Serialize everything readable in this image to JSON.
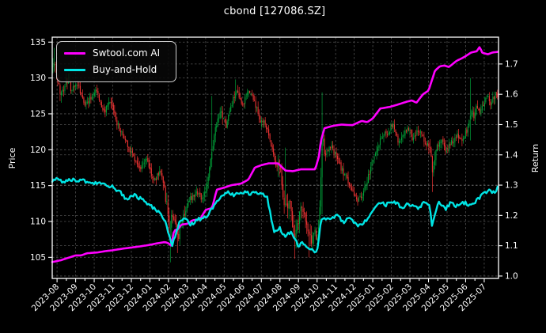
{
  "title": "cbond [127086.SZ]",
  "chart_data": {
    "type": "candlestick+line",
    "title": "cbond [127086.SZ]",
    "ylabel_left": "Price",
    "ylabel_right": "Return",
    "x_unit": "months since 2023-08",
    "x_tick_labels": [
      "2023-08",
      "2023-09",
      "2023-10",
      "2023-11",
      "2023-12",
      "2024-01",
      "2024-02",
      "2024-03",
      "2024-04",
      "2024-05",
      "2024-06",
      "2024-07",
      "2024-08",
      "2024-09",
      "2024-10",
      "2024-11",
      "2024-12",
      "2025-01",
      "2025-02",
      "2025-03",
      "2025-04",
      "2025-05",
      "2025-06",
      "2025-07"
    ],
    "xlim": [
      -0.26,
      23.77
    ],
    "y_left": {
      "ticks": [
        105,
        110,
        115,
        120,
        125,
        130,
        135
      ],
      "lim": [
        102.06,
        135.69
      ]
    },
    "y_right": {
      "tick_labels": [
        "1.0",
        "1.1",
        "1.2",
        "1.3",
        "1.4",
        "1.5",
        "1.6",
        "1.7"
      ],
      "lim": [
        0.992,
        1.7885
      ]
    },
    "grid": {
      "color": "#5f5f5f",
      "dash": "2.5 2.5"
    },
    "background": "#000000",
    "spine_color": "#ffffff",
    "candles": {
      "color_up": "#00a038",
      "color_down": "#ee3333",
      "price_path": [
        [
          -0.26,
          131.0
        ],
        [
          -0.15,
          132.5
        ],
        [
          0.0,
          129.5
        ],
        [
          0.2,
          127.8
        ],
        [
          0.5,
          129.8
        ],
        [
          0.8,
          128.2
        ],
        [
          1.1,
          129.3
        ],
        [
          1.45,
          126.3
        ],
        [
          1.8,
          127.2
        ],
        [
          2.1,
          128.6
        ],
        [
          2.5,
          125.2
        ],
        [
          2.9,
          126.6
        ],
        [
          3.3,
          123.2
        ],
        [
          3.7,
          121.2
        ],
        [
          4.1,
          119.2
        ],
        [
          4.5,
          117.2
        ],
        [
          4.8,
          119.0
        ],
        [
          5.2,
          115.6
        ],
        [
          5.6,
          117.2
        ],
        [
          5.85,
          113.4
        ],
        [
          6.05,
          109.0
        ],
        [
          6.25,
          111.4
        ],
        [
          6.5,
          107.2
        ],
        [
          6.75,
          110.6
        ],
        [
          7.1,
          112.8
        ],
        [
          7.5,
          114.4
        ],
        [
          7.9,
          113.0
        ],
        [
          8.2,
          117.2
        ],
        [
          8.5,
          122.4
        ],
        [
          8.8,
          125.0
        ],
        [
          9.1,
          123.4
        ],
        [
          9.4,
          126.4
        ],
        [
          9.65,
          128.0
        ],
        [
          10.0,
          126.0
        ],
        [
          10.3,
          128.4
        ],
        [
          10.6,
          127.0
        ],
        [
          10.9,
          124.2
        ],
        [
          11.2,
          123.6
        ],
        [
          11.5,
          121.2
        ],
        [
          11.8,
          117.8
        ],
        [
          12.0,
          118.5
        ],
        [
          12.15,
          114.5
        ],
        [
          12.3,
          111.5
        ],
        [
          12.5,
          113.5
        ],
        [
          12.7,
          109.2
        ],
        [
          12.85,
          107.8
        ],
        [
          13.0,
          110.5
        ],
        [
          13.2,
          112.5
        ],
        [
          13.45,
          109.2
        ],
        [
          13.65,
          107.2
        ],
        [
          13.85,
          108.8
        ],
        [
          14.0,
          107.2
        ],
        [
          14.1,
          109.0
        ],
        [
          14.28,
          121.5
        ],
        [
          14.45,
          119.0
        ],
        [
          14.7,
          120.6
        ],
        [
          15.0,
          119.2
        ],
        [
          15.3,
          117.4
        ],
        [
          15.6,
          116.0
        ],
        [
          15.9,
          114.2
        ],
        [
          16.2,
          112.8
        ],
        [
          16.5,
          114.0
        ],
        [
          16.8,
          116.5
        ],
        [
          17.1,
          119.5
        ],
        [
          17.45,
          121.5
        ],
        [
          17.8,
          122.5
        ],
        [
          18.1,
          123.5
        ],
        [
          18.35,
          121.0
        ],
        [
          18.6,
          122.0
        ],
        [
          18.9,
          123.2
        ],
        [
          19.15,
          121.5
        ],
        [
          19.45,
          122.8
        ],
        [
          19.7,
          121.5
        ],
        [
          19.9,
          120.4
        ],
        [
          20.05,
          121.0
        ],
        [
          20.2,
          117.4
        ],
        [
          20.45,
          120.6
        ],
        [
          20.7,
          121.6
        ],
        [
          20.95,
          119.8
        ],
        [
          21.2,
          120.8
        ],
        [
          21.5,
          122.0
        ],
        [
          21.8,
          121.2
        ],
        [
          22.1,
          122.8
        ],
        [
          22.28,
          125.5
        ],
        [
          22.45,
          124.8
        ],
        [
          22.6,
          126.2
        ],
        [
          22.8,
          125.2
        ],
        [
          23.0,
          126.8
        ],
        [
          23.15,
          127.8
        ],
        [
          23.3,
          126.4
        ],
        [
          23.45,
          127.2
        ],
        [
          23.6,
          127.8
        ],
        [
          23.72,
          127.4
        ]
      ],
      "wick_events": [
        [
          -0.15,
          "high",
          134.2
        ],
        [
          6.1,
          "low",
          104.3
        ],
        [
          6.5,
          "low",
          105.6
        ],
        [
          8.35,
          "high",
          127.5
        ],
        [
          9.6,
          "high",
          129.8
        ],
        [
          12.3,
          "high",
          120.3
        ],
        [
          12.8,
          "low",
          104.8
        ],
        [
          13.6,
          "low",
          105.0
        ],
        [
          14.28,
          "high",
          128.0
        ],
        [
          14.28,
          "low",
          111.0
        ],
        [
          20.2,
          "low",
          114.1
        ],
        [
          22.28,
          "high",
          130.0
        ],
        [
          22.28,
          "low",
          121.3
        ]
      ],
      "vol_zones": [
        [
          -0.3,
          0.7,
          1.6
        ],
        [
          5.7,
          6.9,
          1.7
        ],
        [
          8.0,
          9.0,
          1.4
        ],
        [
          11.9,
          14.4,
          1.9
        ],
        [
          19.9,
          20.4,
          1.5
        ]
      ]
    },
    "series": [
      {
        "name": "Swtool.com AI",
        "color": "#ff00ff",
        "axis": "right",
        "width": 2.6,
        "jitter": 0,
        "points": [
          [
            -0.26,
            1.046
          ],
          [
            0.2,
            1.052
          ],
          [
            0.6,
            1.06
          ],
          [
            1.0,
            1.068
          ],
          [
            1.3,
            1.068
          ],
          [
            1.6,
            1.075
          ],
          [
            2.2,
            1.078
          ],
          [
            2.6,
            1.082
          ],
          [
            3.0,
            1.085
          ],
          [
            3.5,
            1.09
          ],
          [
            4.0,
            1.094
          ],
          [
            4.5,
            1.098
          ],
          [
            5.0,
            1.103
          ],
          [
            5.4,
            1.108
          ],
          [
            5.8,
            1.112
          ],
          [
            6.0,
            1.108
          ],
          [
            6.15,
            1.1
          ],
          [
            6.3,
            1.15
          ],
          [
            6.5,
            1.155
          ],
          [
            6.7,
            1.17
          ],
          [
            7.0,
            1.172
          ],
          [
            7.3,
            1.184
          ],
          [
            7.7,
            1.188
          ],
          [
            8.0,
            1.218
          ],
          [
            8.35,
            1.225
          ],
          [
            8.6,
            1.285
          ],
          [
            9.0,
            1.292
          ],
          [
            9.4,
            1.3
          ],
          [
            9.9,
            1.305
          ],
          [
            10.3,
            1.318
          ],
          [
            10.65,
            1.358
          ],
          [
            11.0,
            1.366
          ],
          [
            11.4,
            1.372
          ],
          [
            11.9,
            1.372
          ],
          [
            12.3,
            1.348
          ],
          [
            12.7,
            1.346
          ],
          [
            13.1,
            1.352
          ],
          [
            13.9,
            1.352
          ],
          [
            14.1,
            1.395
          ],
          [
            14.2,
            1.445
          ],
          [
            14.4,
            1.488
          ],
          [
            14.8,
            1.495
          ],
          [
            15.3,
            1.5
          ],
          [
            15.9,
            1.498
          ],
          [
            16.4,
            1.512
          ],
          [
            16.7,
            1.508
          ],
          [
            17.0,
            1.52
          ],
          [
            17.4,
            1.553
          ],
          [
            17.9,
            1.558
          ],
          [
            18.3,
            1.565
          ],
          [
            18.8,
            1.575
          ],
          [
            19.1,
            1.58
          ],
          [
            19.35,
            1.572
          ],
          [
            19.7,
            1.6
          ],
          [
            20.0,
            1.612
          ],
          [
            20.15,
            1.64
          ],
          [
            20.35,
            1.678
          ],
          [
            20.6,
            1.692
          ],
          [
            20.85,
            1.695
          ],
          [
            21.1,
            1.69
          ],
          [
            21.5,
            1.71
          ],
          [
            21.9,
            1.722
          ],
          [
            22.3,
            1.738
          ],
          [
            22.6,
            1.742
          ],
          [
            22.75,
            1.756
          ],
          [
            22.9,
            1.737
          ],
          [
            23.2,
            1.732
          ],
          [
            23.45,
            1.738
          ],
          [
            23.72,
            1.74
          ]
        ]
      },
      {
        "name": "Buy-and-Hold",
        "color": "#00e5e5",
        "axis": "right",
        "width": 2.4,
        "jitter": 0.006,
        "points": [
          [
            -0.26,
            1.315
          ],
          [
            0.0,
            1.322
          ],
          [
            0.3,
            1.31
          ],
          [
            0.6,
            1.32
          ],
          [
            0.9,
            1.316
          ],
          [
            1.3,
            1.318
          ],
          [
            1.7,
            1.31
          ],
          [
            2.1,
            1.306
          ],
          [
            2.5,
            1.303
          ],
          [
            2.9,
            1.296
          ],
          [
            3.3,
            1.282
          ],
          [
            3.6,
            1.262
          ],
          [
            3.8,
            1.252
          ],
          [
            4.0,
            1.27
          ],
          [
            4.3,
            1.262
          ],
          [
            4.7,
            1.248
          ],
          [
            5.0,
            1.236
          ],
          [
            5.3,
            1.22
          ],
          [
            5.6,
            1.2
          ],
          [
            5.9,
            1.168
          ],
          [
            6.1,
            1.12
          ],
          [
            6.2,
            1.1
          ],
          [
            6.35,
            1.13
          ],
          [
            6.6,
            1.18
          ],
          [
            6.9,
            1.19
          ],
          [
            7.2,
            1.168
          ],
          [
            7.5,
            1.185
          ],
          [
            7.8,
            1.19
          ],
          [
            8.1,
            1.2
          ],
          [
            8.5,
            1.238
          ],
          [
            8.9,
            1.268
          ],
          [
            9.2,
            1.28
          ],
          [
            9.5,
            1.268
          ],
          [
            9.8,
            1.272
          ],
          [
            10.1,
            1.278
          ],
          [
            10.4,
            1.27
          ],
          [
            10.7,
            1.276
          ],
          [
            11.0,
            1.272
          ],
          [
            11.3,
            1.262
          ],
          [
            11.5,
            1.2
          ],
          [
            11.7,
            1.148
          ],
          [
            12.0,
            1.158
          ],
          [
            12.3,
            1.128
          ],
          [
            12.6,
            1.15
          ],
          [
            12.8,
            1.122
          ],
          [
            13.0,
            1.097
          ],
          [
            13.25,
            1.112
          ],
          [
            13.55,
            1.088
          ],
          [
            13.85,
            1.082
          ],
          [
            14.05,
            1.086
          ],
          [
            14.2,
            1.19
          ],
          [
            14.5,
            1.185
          ],
          [
            14.8,
            1.192
          ],
          [
            15.1,
            1.2
          ],
          [
            15.4,
            1.176
          ],
          [
            15.7,
            1.19
          ],
          [
            16.0,
            1.18
          ],
          [
            16.2,
            1.165
          ],
          [
            16.5,
            1.172
          ],
          [
            16.8,
            1.2
          ],
          [
            17.1,
            1.228
          ],
          [
            17.4,
            1.24
          ],
          [
            17.7,
            1.235
          ],
          [
            18.0,
            1.248
          ],
          [
            18.3,
            1.242
          ],
          [
            18.6,
            1.22
          ],
          [
            18.9,
            1.238
          ],
          [
            19.2,
            1.228
          ],
          [
            19.5,
            1.225
          ],
          [
            19.8,
            1.248
          ],
          [
            20.05,
            1.235
          ],
          [
            20.2,
            1.16
          ],
          [
            20.35,
            1.205
          ],
          [
            20.55,
            1.245
          ],
          [
            20.75,
            1.235
          ],
          [
            20.95,
            1.222
          ],
          [
            21.2,
            1.245
          ],
          [
            21.45,
            1.23
          ],
          [
            21.7,
            1.24
          ],
          [
            21.95,
            1.242
          ],
          [
            22.2,
            1.235
          ],
          [
            22.45,
            1.242
          ],
          [
            22.7,
            1.258
          ],
          [
            22.95,
            1.27
          ],
          [
            23.2,
            1.282
          ],
          [
            23.4,
            1.278
          ],
          [
            23.55,
            1.272
          ],
          [
            23.72,
            1.29
          ]
        ]
      }
    ],
    "legend_position": "upper left"
  }
}
